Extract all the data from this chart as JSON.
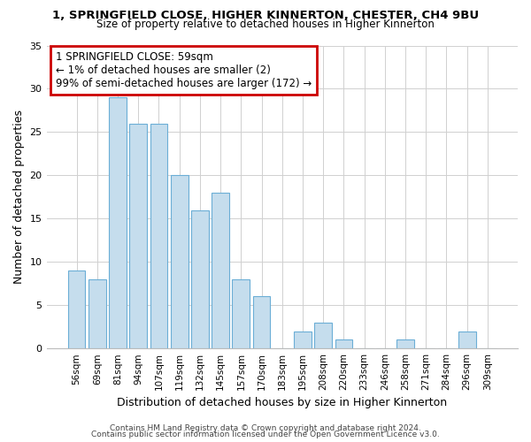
{
  "title_line1": "1, SPRINGFIELD CLOSE, HIGHER KINNERTON, CHESTER, CH4 9BU",
  "title_line2": "Size of property relative to detached houses in Higher Kinnerton",
  "xlabel": "Distribution of detached houses by size in Higher Kinnerton",
  "ylabel": "Number of detached properties",
  "bar_labels": [
    "56sqm",
    "69sqm",
    "81sqm",
    "94sqm",
    "107sqm",
    "119sqm",
    "132sqm",
    "145sqm",
    "157sqm",
    "170sqm",
    "183sqm",
    "195sqm",
    "208sqm",
    "220sqm",
    "233sqm",
    "246sqm",
    "258sqm",
    "271sqm",
    "284sqm",
    "296sqm",
    "309sqm"
  ],
  "bar_values": [
    9,
    8,
    29,
    26,
    26,
    20,
    16,
    18,
    8,
    6,
    0,
    2,
    3,
    1,
    0,
    0,
    1,
    0,
    0,
    2,
    0
  ],
  "bar_color_normal": "#c5dded",
  "bar_edge_color": "#6baed6",
  "annotation_text": "1 SPRINGFIELD CLOSE: 59sqm\n← 1% of detached houses are smaller (2)\n99% of semi-detached houses are larger (172) →",
  "annotation_box_edgecolor": "#cc0000",
  "annotation_box_facecolor": "#ffffff",
  "ylim": [
    0,
    35
  ],
  "yticks": [
    0,
    5,
    10,
    15,
    20,
    25,
    30,
    35
  ],
  "footer_line1": "Contains HM Land Registry data © Crown copyright and database right 2024.",
  "footer_line2": "Contains public sector information licensed under the Open Government Licence v3.0.",
  "background_color": "#ffffff",
  "grid_color": "#d0d0d0"
}
